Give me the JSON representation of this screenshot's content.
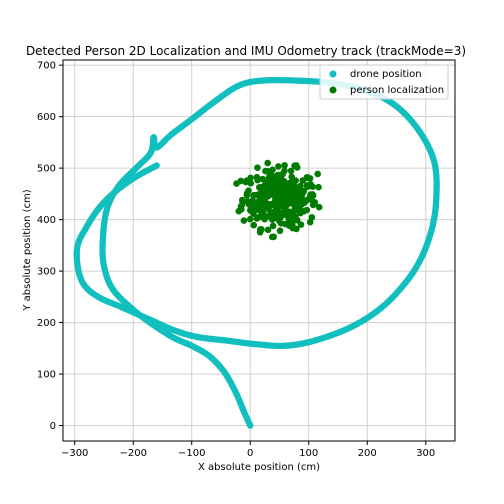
{
  "chart_data": {
    "type": "scatter",
    "title": "Detected Person 2D Localization and IMU Odometry track (trackMode=3)",
    "xlabel": "X absolute position (cm)",
    "ylabel": "Y absolute position (cm)",
    "xlim": [
      -320,
      350
    ],
    "ylim": [
      -30,
      710
    ],
    "xticks": [
      -300,
      -200,
      -100,
      0,
      100,
      200,
      300
    ],
    "yticks": [
      0,
      100,
      200,
      300,
      400,
      500,
      600,
      700
    ],
    "grid": true,
    "legend_position": "top-right",
    "series": [
      {
        "name": "drone position",
        "color": "#12bfbf",
        "waypoints": [
          [
            0,
            0
          ],
          [
            -10,
            25
          ],
          [
            -25,
            65
          ],
          [
            -45,
            105
          ],
          [
            -70,
            135
          ],
          [
            -100,
            155
          ],
          [
            -130,
            170
          ],
          [
            -165,
            195
          ],
          [
            -200,
            225
          ],
          [
            -235,
            265
          ],
          [
            -250,
            310
          ],
          [
            -252,
            360
          ],
          [
            -245,
            420
          ],
          [
            -225,
            465
          ],
          [
            -195,
            500
          ],
          [
            -170,
            530
          ],
          [
            -165,
            560
          ],
          [
            -160,
            540
          ],
          [
            -135,
            565
          ],
          [
            -100,
            595
          ],
          [
            -60,
            630
          ],
          [
            -20,
            660
          ],
          [
            20,
            670
          ],
          [
            80,
            670
          ],
          [
            140,
            665
          ],
          [
            200,
            650
          ],
          [
            250,
            620
          ],
          [
            290,
            570
          ],
          [
            315,
            510
          ],
          [
            318,
            440
          ],
          [
            310,
            380
          ],
          [
            290,
            320
          ],
          [
            260,
            270
          ],
          [
            220,
            225
          ],
          [
            170,
            190
          ],
          [
            110,
            165
          ],
          [
            60,
            155
          ],
          [
            10,
            158
          ],
          [
            -40,
            165
          ],
          [
            -90,
            172
          ],
          [
            -130,
            185
          ],
          [
            -170,
            205
          ],
          [
            -220,
            230
          ],
          [
            -260,
            250
          ],
          [
            -285,
            275
          ],
          [
            -295,
            310
          ],
          [
            -295,
            350
          ],
          [
            -280,
            385
          ],
          [
            -260,
            420
          ],
          [
            -235,
            450
          ],
          [
            -200,
            480
          ],
          [
            -160,
            505
          ]
        ]
      },
      {
        "name": "person localization",
        "color": "#007a00",
        "center": [
          50,
          440
        ],
        "spread": [
          40,
          35
        ],
        "point_count": 320,
        "bounds": {
          "x": [
            -40,
            120
          ],
          "y": [
            350,
            510
          ]
        }
      }
    ]
  }
}
